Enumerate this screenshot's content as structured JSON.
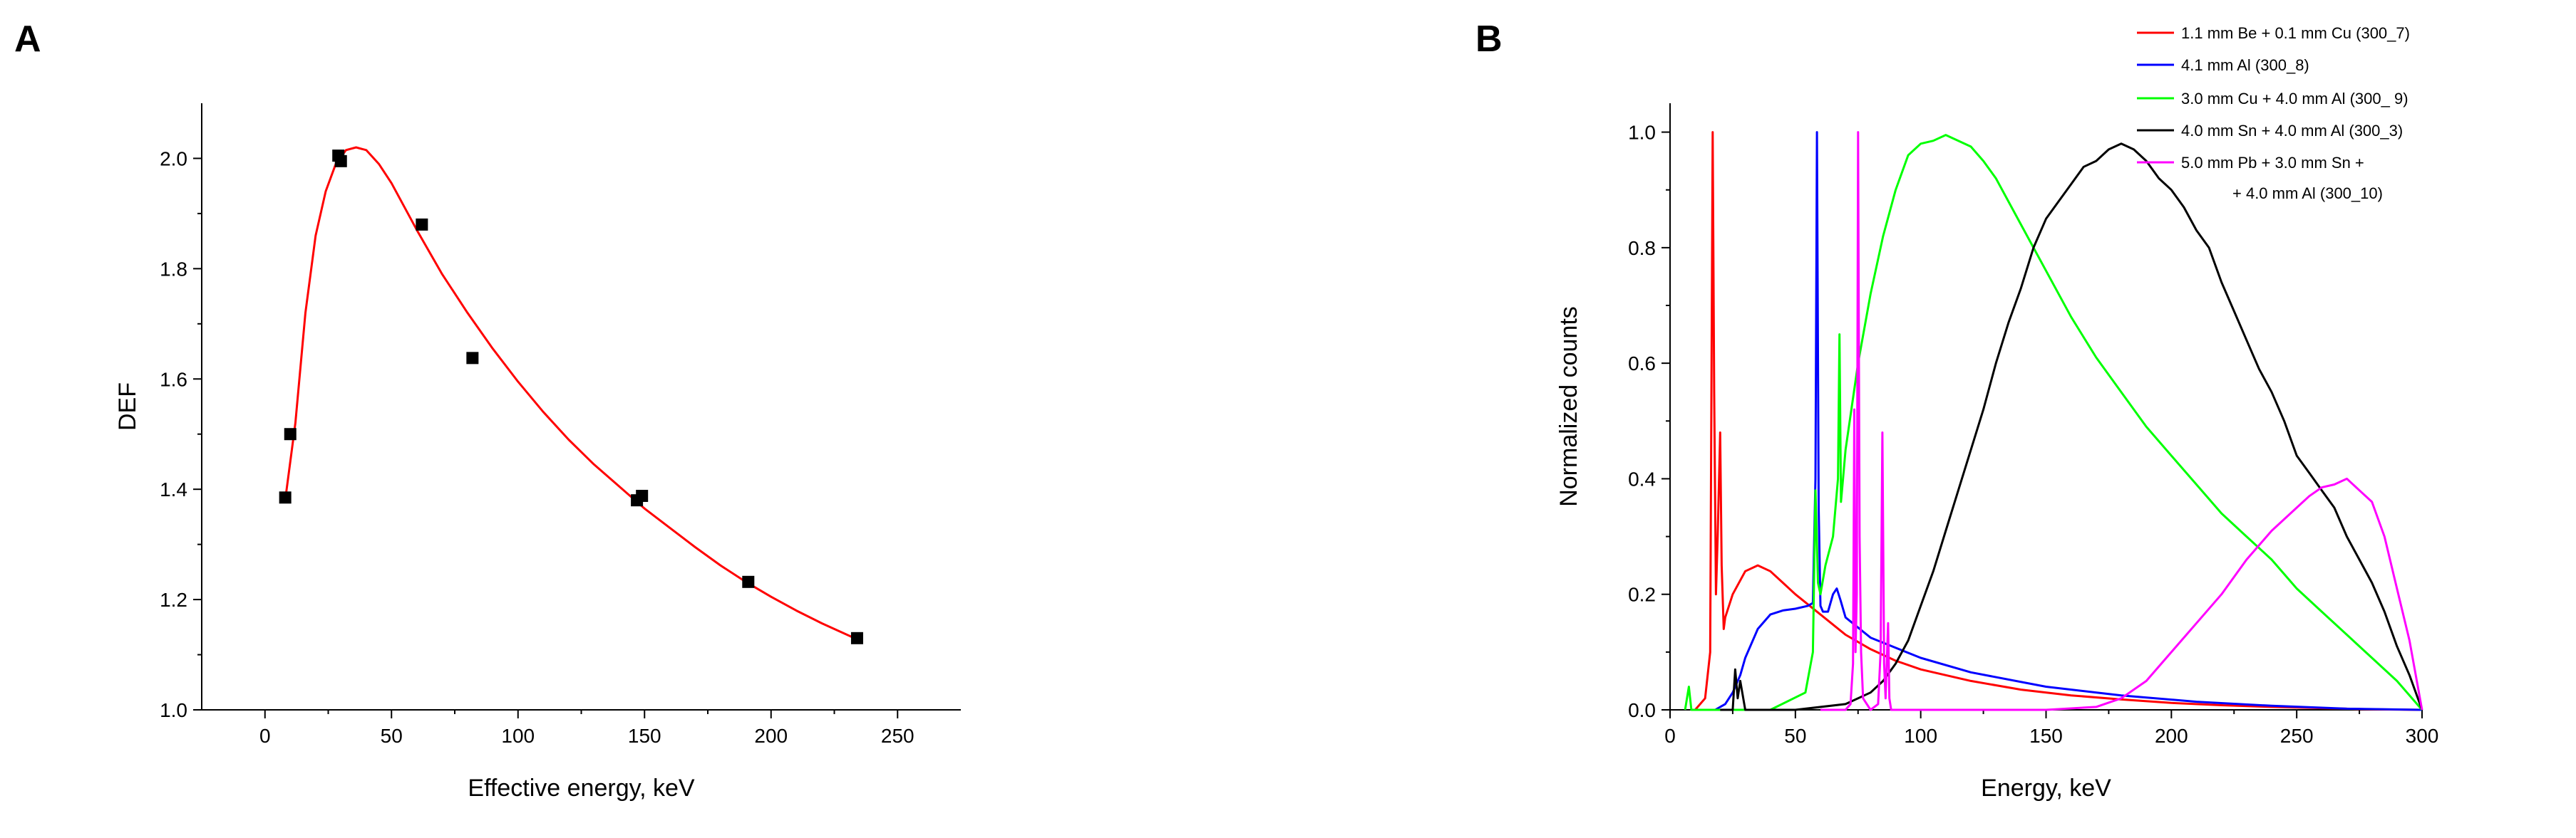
{
  "chart_data": [
    {
      "panel_label": "A",
      "type": "scatter",
      "xlabel": "Effective energy, keV",
      "ylabel": "DEF",
      "xlim": [
        -25,
        275
      ],
      "ylim": [
        1.0,
        2.1
      ],
      "xticks": [
        0,
        50,
        100,
        150,
        200,
        250
      ],
      "yticks": [
        1.0,
        1.2,
        1.4,
        1.6,
        1.8,
        2.0
      ],
      "grid": false,
      "points": {
        "color": "#000000",
        "x": [
          8,
          10,
          29,
          30,
          62,
          82,
          147,
          149,
          191,
          234
        ],
        "y": [
          1.385,
          1.5,
          2.005,
          1.995,
          1.88,
          1.638,
          1.38,
          1.388,
          1.232,
          1.13
        ]
      },
      "fit": {
        "color": "#ff0000",
        "x": [
          8,
          12,
          16,
          20,
          24,
          28,
          32,
          36,
          40,
          45,
          50,
          60,
          70,
          80,
          90,
          100,
          110,
          120,
          130,
          140,
          150,
          160,
          170,
          180,
          190,
          200,
          210,
          220,
          234
        ],
        "y": [
          1.38,
          1.52,
          1.72,
          1.86,
          1.94,
          1.99,
          2.015,
          2.02,
          2.015,
          1.99,
          1.955,
          1.87,
          1.79,
          1.72,
          1.655,
          1.595,
          1.54,
          1.49,
          1.445,
          1.405,
          1.365,
          1.33,
          1.295,
          1.262,
          1.232,
          1.205,
          1.18,
          1.157,
          1.128
        ]
      }
    },
    {
      "panel_label": "B",
      "type": "line",
      "xlabel": "Energy, keV",
      "ylabel": "Normalized counts",
      "xlim": [
        0,
        300
      ],
      "ylim": [
        0,
        1.05
      ],
      "xticks": [
        0,
        50,
        100,
        150,
        200,
        250,
        300
      ],
      "yticks": [
        0.0,
        0.2,
        0.4,
        0.6,
        0.8,
        1.0
      ],
      "grid": false,
      "legend_position": "top-right",
      "series": [
        {
          "name": "1.1 mm Be + 0.1 mm Cu (300_7)",
          "color": "#ff0000",
          "x": [
            10,
            14,
            16,
            17,
            17.6,
            18.3,
            19,
            20,
            20.6,
            21.4,
            22,
            25,
            30,
            35,
            40,
            45,
            50,
            60,
            70,
            80,
            90,
            100,
            120,
            140,
            160,
            180,
            200,
            220,
            240,
            260,
            280,
            300
          ],
          "y": [
            0,
            0.02,
            0.1,
            1.0,
            0.55,
            0.2,
            0.3,
            0.48,
            0.25,
            0.14,
            0.16,
            0.2,
            0.24,
            0.25,
            0.24,
            0.22,
            0.2,
            0.165,
            0.13,
            0.105,
            0.085,
            0.07,
            0.05,
            0.035,
            0.025,
            0.018,
            0.012,
            0.008,
            0.005,
            0.003,
            0.001,
            0.0
          ]
        },
        {
          "name": "4.1 mm Al (300_8)",
          "color": "#0000ff",
          "x": [
            18,
            22,
            25,
            28,
            30,
            35,
            40,
            45,
            50,
            55,
            57,
            58,
            58.6,
            59.3,
            60,
            61,
            63,
            65,
            66.5,
            68,
            70,
            80,
            100,
            120,
            150,
            180,
            210,
            240,
            270,
            300
          ],
          "y": [
            0,
            0.01,
            0.03,
            0.06,
            0.09,
            0.14,
            0.165,
            0.172,
            0.175,
            0.18,
            0.185,
            0.4,
            1.0,
            0.35,
            0.18,
            0.17,
            0.17,
            0.2,
            0.21,
            0.19,
            0.16,
            0.125,
            0.09,
            0.065,
            0.04,
            0.025,
            0.014,
            0.007,
            0.002,
            0.0
          ]
        },
        {
          "name": "3.0 mm Cu + 4.0 mm Al (300_ 9)",
          "color": "#00ff00",
          "x": [
            6,
            7.5,
            8.5,
            10,
            20,
            40,
            54,
            57,
            58,
            59,
            60,
            62,
            65,
            66,
            67,
            67.6,
            68.2,
            69,
            70,
            75,
            80,
            85,
            90,
            95,
            100,
            105,
            110,
            115,
            120,
            125,
            130,
            140,
            150,
            160,
            170,
            180,
            190,
            200,
            210,
            220,
            230,
            240,
            250,
            260,
            270,
            280,
            290,
            300
          ],
          "y": [
            0,
            0.04,
            0,
            0,
            0,
            0,
            0.03,
            0.1,
            0.38,
            0.22,
            0.2,
            0.25,
            0.3,
            0.35,
            0.4,
            0.65,
            0.36,
            0.4,
            0.45,
            0.6,
            0.72,
            0.82,
            0.9,
            0.96,
            0.98,
            0.985,
            0.995,
            0.985,
            0.975,
            0.95,
            0.92,
            0.84,
            0.76,
            0.68,
            0.61,
            0.55,
            0.49,
            0.44,
            0.39,
            0.34,
            0.3,
            0.26,
            0.21,
            0.17,
            0.13,
            0.09,
            0.05,
            0.0
          ]
        },
        {
          "name": "4.0 mm Sn + 4.0 mm Al (300_3)",
          "color": "#000000",
          "x": [
            20,
            25,
            26,
            27,
            28,
            30,
            50,
            70,
            80,
            85,
            90,
            95,
            100,
            105,
            110,
            115,
            120,
            125,
            130,
            135,
            140,
            145,
            150,
            155,
            160,
            165,
            170,
            175,
            180,
            185,
            190,
            195,
            200,
            205,
            210,
            215,
            220,
            225,
            230,
            235,
            240,
            245,
            250,
            255,
            260,
            265,
            270,
            275,
            280,
            285,
            290,
            295,
            300
          ],
          "y": [
            0,
            0,
            0.07,
            0.02,
            0.05,
            0,
            0,
            0.01,
            0.03,
            0.05,
            0.08,
            0.12,
            0.18,
            0.24,
            0.31,
            0.38,
            0.45,
            0.52,
            0.6,
            0.67,
            0.73,
            0.8,
            0.85,
            0.88,
            0.91,
            0.94,
            0.95,
            0.97,
            0.98,
            0.97,
            0.95,
            0.92,
            0.9,
            0.87,
            0.83,
            0.8,
            0.74,
            0.69,
            0.64,
            0.59,
            0.55,
            0.5,
            0.44,
            0.41,
            0.38,
            0.35,
            0.3,
            0.26,
            0.22,
            0.17,
            0.11,
            0.06,
            0.0
          ]
        },
        {
          "name": "5.0 mm Pb + 3.0 mm Sn + + 4.0 mm Al (300_10)",
          "legend_lines": [
            "5.0 mm Pb + 3.0 mm Sn +",
            "+ 4.0 mm Al (300_10)"
          ],
          "color": "#ff00ff",
          "x": [
            60,
            70,
            72,
            73,
            73.5,
            74,
            74.5,
            75,
            75.6,
            76.2,
            77,
            80,
            83,
            84,
            84.7,
            85.4,
            86,
            87,
            87.5,
            88.2,
            89,
            100,
            150,
            170,
            180,
            190,
            200,
            210,
            220,
            230,
            240,
            250,
            255,
            260,
            265,
            270,
            275,
            280,
            285,
            290,
            295,
            300
          ],
          "y": [
            0,
            0,
            0.01,
            0.08,
            0.52,
            0.1,
            0.2,
            1.0,
            0.3,
            0.1,
            0.02,
            0.0,
            0.01,
            0.1,
            0.48,
            0.08,
            0.02,
            0.15,
            0.02,
            0.0,
            0.0,
            0.0,
            0.0,
            0.005,
            0.02,
            0.05,
            0.1,
            0.15,
            0.2,
            0.26,
            0.31,
            0.35,
            0.37,
            0.385,
            0.39,
            0.4,
            0.38,
            0.36,
            0.3,
            0.21,
            0.12,
            0.0
          ]
        }
      ]
    }
  ]
}
